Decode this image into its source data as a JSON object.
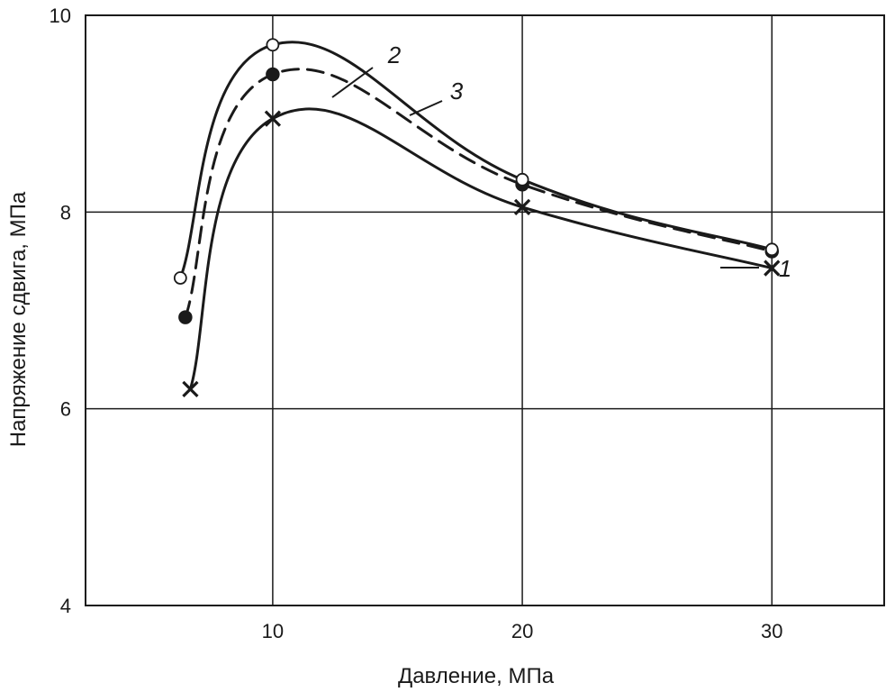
{
  "chart_data": {
    "type": "line",
    "xlabel": "Давление, МПа",
    "ylabel": "Напряжение сдвига, МПа",
    "xlim": [
      2.5,
      34.5
    ],
    "ylim": [
      4,
      10
    ],
    "x_ticks": [
      10,
      20,
      30
    ],
    "y_ticks": [
      4,
      6,
      8,
      10
    ],
    "grid": true,
    "series": [
      {
        "name": "1",
        "marker": "x",
        "dash": "solid",
        "points": [
          [
            6.7,
            6.2
          ],
          [
            10,
            8.95
          ],
          [
            20,
            8.05
          ],
          [
            30,
            7.43
          ]
        ]
      },
      {
        "name": "2",
        "marker": "filled-circle",
        "dash": "dashed",
        "points": [
          [
            6.5,
            6.93
          ],
          [
            10,
            9.4
          ],
          [
            20,
            8.28
          ],
          [
            30,
            7.6
          ]
        ]
      },
      {
        "name": "3",
        "marker": "open-circle",
        "dash": "solid",
        "points": [
          [
            6.3,
            7.33
          ],
          [
            10,
            9.7
          ],
          [
            20,
            8.33
          ],
          [
            30,
            7.62
          ]
        ]
      }
    ]
  }
}
